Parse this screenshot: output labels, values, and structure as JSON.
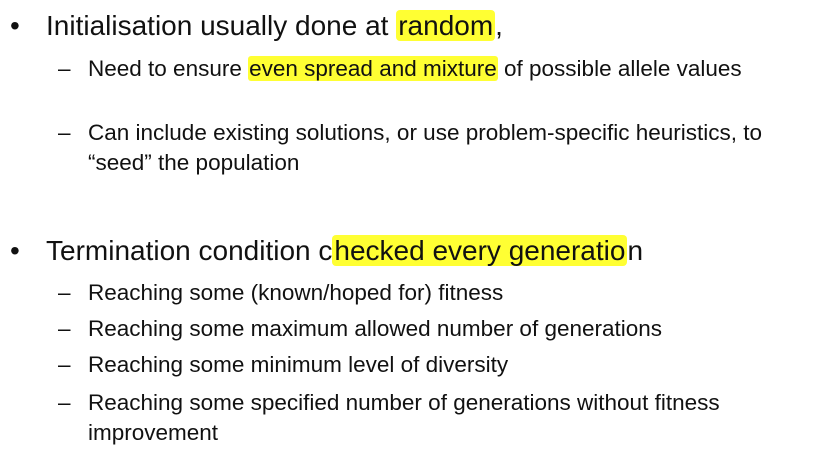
{
  "bullet_glyph": "•",
  "dash_glyph": "–",
  "highlight_color": "#ffff33",
  "section1": {
    "pre": "Initialisation usually done at ",
    "highlight": "random",
    "post": ",",
    "items": [
      {
        "pre": "Need to ensure ",
        "highlight": "even spread and mixture",
        "post": " of possible allele values"
      },
      {
        "text": "Can include existing solutions, or use problem-specific heuristics, to “seed” the population"
      }
    ]
  },
  "section2": {
    "pre": "Termination condition c",
    "highlight": "hecked every generatio",
    "post": "n",
    "items": [
      {
        "text": "Reaching some (known/hoped for) fitness"
      },
      {
        "text": "Reaching some maximum allowed number of generations"
      },
      {
        "text": "Reaching some minimum level of diversity"
      },
      {
        "text": "Reaching some specified number of generations without fitness improvement"
      }
    ]
  }
}
